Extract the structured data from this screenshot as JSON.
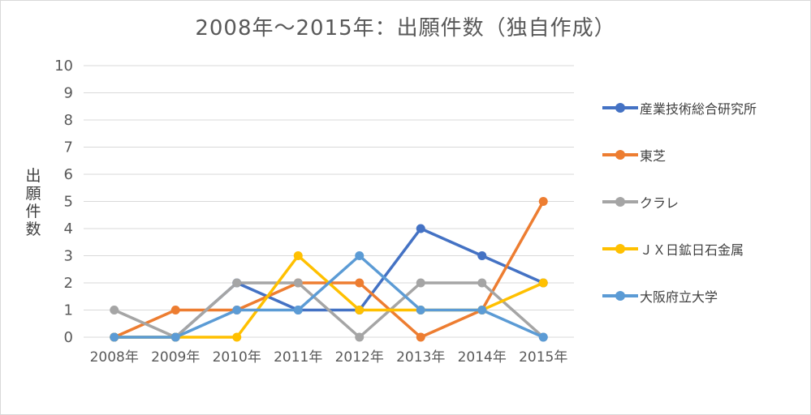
{
  "chart_data": {
    "type": "line",
    "title": "2008年～2015年：出願件数（独自作成）",
    "xlabel": "",
    "ylabel": "出願件数",
    "ylabel_chars": [
      "出",
      "願",
      "件",
      "数"
    ],
    "categories": [
      "2008年",
      "2009年",
      "2010年",
      "2011年",
      "2012年",
      "2013年",
      "2014年",
      "2015年"
    ],
    "ylim": [
      0,
      10
    ],
    "yticks": [
      "0",
      "1",
      "2",
      "3",
      "4",
      "5",
      "6",
      "7",
      "8",
      "9",
      "10"
    ],
    "grid": true,
    "legend_position": "right",
    "series": [
      {
        "name": "産業技術総合研究所",
        "color": "#4472c4",
        "values": [
          0,
          0,
          2,
          1,
          1,
          4,
          3,
          2
        ]
      },
      {
        "name": "東芝",
        "color": "#ed7d31",
        "values": [
          0,
          1,
          1,
          2,
          2,
          0,
          1,
          5
        ]
      },
      {
        "name": "クラレ",
        "color": "#a5a5a5",
        "values": [
          1,
          0,
          2,
          2,
          0,
          2,
          2,
          0
        ]
      },
      {
        "name": "ＪＸ日鉱日石金属",
        "color": "#ffc000",
        "values": [
          0,
          0,
          0,
          3,
          1,
          1,
          1,
          2
        ]
      },
      {
        "name": "大阪府立大学",
        "color": "#5b9bd5",
        "values": [
          0,
          0,
          1,
          1,
          3,
          1,
          1,
          0
        ]
      }
    ]
  }
}
